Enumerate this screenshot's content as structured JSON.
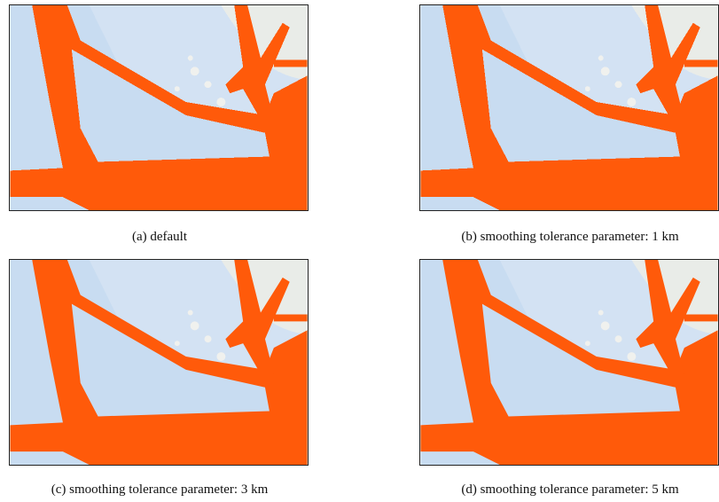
{
  "captions": [
    "(a) default",
    "(b) smoothing tolerance parameter: 1 km",
    "(c) smoothing tolerance parameter: 3 km",
    "(d) smoothing tolerance parameter: 5 km"
  ]
}
